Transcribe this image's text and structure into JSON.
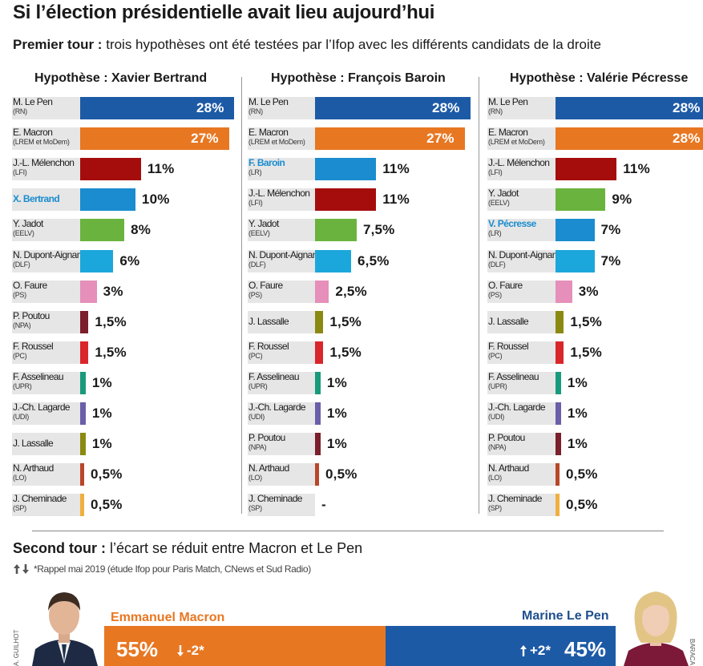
{
  "header": {
    "title": "Si l’élection présidentielle avait lieu aujourd’hui",
    "subtitle_bold": "Premier tour :",
    "subtitle_text": "trois hypothèses ont été testées par l’Ifop avec les différents candidats de la droite"
  },
  "chart_data": [
    {
      "type": "bar",
      "title": "Hypothèse : Xavier Bertrand",
      "xlim": [
        0,
        28
      ],
      "rows": [
        {
          "name": "M. Le Pen",
          "party": "(RN)",
          "value": 28,
          "label": "28%",
          "color": "#1d5aa6"
        },
        {
          "name": "E. Macron",
          "party": "(LREM et MoDem)",
          "value": 27,
          "label": "27%",
          "color": "#e87722"
        },
        {
          "name": "J.-L. Mélenchon",
          "party": "(LFI)",
          "value": 11,
          "label": "11%",
          "color": "#a50d0d"
        },
        {
          "name": "X. Bertrand",
          "party": "",
          "value": 10,
          "label": "10%",
          "color": "#1a8ccf",
          "highlight": true
        },
        {
          "name": "Y. Jadot",
          "party": "(EELV)",
          "value": 8,
          "label": "8%",
          "color": "#6ab33e"
        },
        {
          "name": "N. Dupont-Aignan",
          "party": "(DLF)",
          "value": 6,
          "label": "6%",
          "color": "#1ba7db"
        },
        {
          "name": "O. Faure",
          "party": "(PS)",
          "value": 3,
          "label": "3%",
          "color": "#e58fba"
        },
        {
          "name": "P. Poutou",
          "party": "(NPA)",
          "value": 1.5,
          "label": "1,5%",
          "color": "#7a1f2b"
        },
        {
          "name": "F. Roussel",
          "party": "(PC)",
          "value": 1.5,
          "label": "1,5%",
          "color": "#d9262b"
        },
        {
          "name": "F. Asselineau",
          "party": "(UPR)",
          "value": 1,
          "label": "1%",
          "color": "#1a9a7c"
        },
        {
          "name": "J.-Ch. Lagarde",
          "party": "(UDI)",
          "value": 1,
          "label": "1%",
          "color": "#6a5fa8"
        },
        {
          "name": "J. Lassalle",
          "party": "",
          "value": 1,
          "label": "1%",
          "color": "#8a8a12"
        },
        {
          "name": "N. Arthaud",
          "party": "(LO)",
          "value": 0.5,
          "label": "0,5%",
          "color": "#b8472a"
        },
        {
          "name": "J. Cheminade",
          "party": "(SP)",
          "value": 0.5,
          "label": "0,5%",
          "color": "#f0b03f"
        }
      ]
    },
    {
      "type": "bar",
      "title": "Hypothèse : François Baroin",
      "xlim": [
        0,
        28
      ],
      "rows": [
        {
          "name": "M. Le Pen",
          "party": "(RN)",
          "value": 28,
          "label": "28%",
          "color": "#1d5aa6"
        },
        {
          "name": "E. Macron",
          "party": "(LREM et MoDem)",
          "value": 27,
          "label": "27%",
          "color": "#e87722"
        },
        {
          "name": "F. Baroin",
          "party": "(LR)",
          "value": 11,
          "label": "11%",
          "color": "#1a8ccf",
          "highlight": true
        },
        {
          "name": "J.-L. Mélenchon",
          "party": "(LFI)",
          "value": 11,
          "label": "11%",
          "color": "#a50d0d"
        },
        {
          "name": "Y. Jadot",
          "party": "(EELV)",
          "value": 7.5,
          "label": "7,5%",
          "color": "#6ab33e"
        },
        {
          "name": "N. Dupont-Aignan",
          "party": "(DLF)",
          "value": 6.5,
          "label": "6,5%",
          "color": "#1ba7db"
        },
        {
          "name": "O. Faure",
          "party": "(PS)",
          "value": 2.5,
          "label": "2,5%",
          "color": "#e58fba"
        },
        {
          "name": "J. Lassalle",
          "party": "",
          "value": 1.5,
          "label": "1,5%",
          "color": "#8a8a12"
        },
        {
          "name": "F. Roussel",
          "party": "(PC)",
          "value": 1.5,
          "label": "1,5%",
          "color": "#d9262b"
        },
        {
          "name": "F. Asselineau",
          "party": "(UPR)",
          "value": 1,
          "label": "1%",
          "color": "#1a9a7c"
        },
        {
          "name": "J.-Ch. Lagarde",
          "party": "(UDI)",
          "value": 1,
          "label": "1%",
          "color": "#6a5fa8"
        },
        {
          "name": "P. Poutou",
          "party": "(NPA)",
          "value": 1,
          "label": "1%",
          "color": "#7a1f2b"
        },
        {
          "name": "N. Arthaud",
          "party": "(LO)",
          "value": 0.5,
          "label": "0,5%",
          "color": "#b8472a"
        },
        {
          "name": "J. Cheminade",
          "party": "(SP)",
          "value": 0,
          "label": "-",
          "color": "#f0b03f"
        }
      ]
    },
    {
      "type": "bar",
      "title": "Hypothèse : Valérie Pécresse",
      "xlim": [
        0,
        28
      ],
      "rows": [
        {
          "name": "M. Le Pen",
          "party": "(RN)",
          "value": 28,
          "label": "28%",
          "color": "#1d5aa6"
        },
        {
          "name": "E. Macron",
          "party": "(LREM et MoDem)",
          "value": 28,
          "label": "28%",
          "color": "#e87722"
        },
        {
          "name": "J.-L. Mélenchon",
          "party": "(LFI)",
          "value": 11,
          "label": "11%",
          "color": "#a50d0d"
        },
        {
          "name": "Y. Jadot",
          "party": "(EELV)",
          "value": 9,
          "label": "9%",
          "color": "#6ab33e"
        },
        {
          "name": "V. Pécresse",
          "party": "(LR)",
          "value": 7,
          "label": "7%",
          "color": "#1a8ccf",
          "highlight": true
        },
        {
          "name": "N. Dupont-Aignan",
          "party": "(DLF)",
          "value": 7,
          "label": "7%",
          "color": "#1ba7db"
        },
        {
          "name": "O. Faure",
          "party": "(PS)",
          "value": 3,
          "label": "3%",
          "color": "#e58fba"
        },
        {
          "name": "J. Lassalle",
          "party": "",
          "value": 1.5,
          "label": "1,5%",
          "color": "#8a8a12"
        },
        {
          "name": "F. Roussel",
          "party": "(PC)",
          "value": 1.5,
          "label": "1,5%",
          "color": "#d9262b"
        },
        {
          "name": "F. Asselineau",
          "party": "(UPR)",
          "value": 1,
          "label": "1%",
          "color": "#1a9a7c"
        },
        {
          "name": "J.-Ch. Lagarde",
          "party": "(UDI)",
          "value": 1,
          "label": "1%",
          "color": "#6a5fa8"
        },
        {
          "name": "P. Poutou",
          "party": "(NPA)",
          "value": 1,
          "label": "1%",
          "color": "#7a1f2b"
        },
        {
          "name": "N. Arthaud",
          "party": "(LO)",
          "value": 0.5,
          "label": "0,5%",
          "color": "#b8472a"
        },
        {
          "name": "J. Cheminade",
          "party": "(SP)",
          "value": 0.5,
          "label": "0,5%",
          "color": "#f0b03f"
        }
      ]
    },
    {
      "type": "bar",
      "title": "Second tour : l’écart se réduit entre Macron et Le Pen",
      "stacked_100": true,
      "series": [
        {
          "name": "Emmanuel Macron",
          "value": 55,
          "label": "55%",
          "evolution": "-2*",
          "color": "#e87722"
        },
        {
          "name": "Marine Le Pen",
          "value": 45,
          "label": "45%",
          "evolution": "+2*",
          "color": "#1d5aa6"
        }
      ]
    }
  ],
  "second_round": {
    "heading_bold": "Second tour :",
    "heading_text": "l’écart se réduit entre Macron et Le Pen",
    "note": "*Rappel mai 2019 (étude Ifop pour Paris Match, CNews et Sud Radio)",
    "left_name": "Emmanuel Macron",
    "left_pct": "55%",
    "left_evo": "-2*",
    "right_name": "Marine Le Pen",
    "right_pct": "45%",
    "right_evo": "+2*",
    "credit_left": "A. GUILHOT",
    "credit_right": "BARACA"
  }
}
